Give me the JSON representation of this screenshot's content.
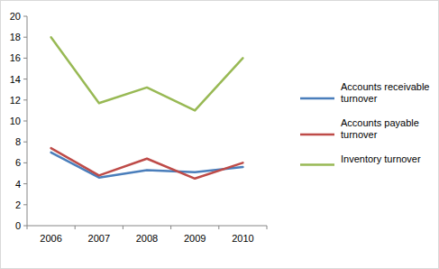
{
  "chart_data": {
    "type": "line",
    "categories": [
      "2006",
      "2007",
      "2008",
      "2009",
      "2010"
    ],
    "series": [
      {
        "name": "Accounts receivable turnover",
        "color": "#4a7ebb",
        "values": [
          7.0,
          4.6,
          5.3,
          5.1,
          5.6
        ]
      },
      {
        "name": "Accounts payable turnover",
        "color": "#be4b48",
        "values": [
          7.4,
          4.8,
          6.4,
          4.5,
          6.0
        ]
      },
      {
        "name": "Inventory turnover",
        "color": "#98b954",
        "values": [
          18.0,
          11.7,
          13.2,
          11.0,
          16.0
        ]
      }
    ],
    "ylim": [
      0,
      20
    ],
    "yticks": [
      0,
      2,
      4,
      6,
      8,
      10,
      12,
      14,
      16,
      18,
      20
    ],
    "grid": false,
    "legend": "right"
  }
}
